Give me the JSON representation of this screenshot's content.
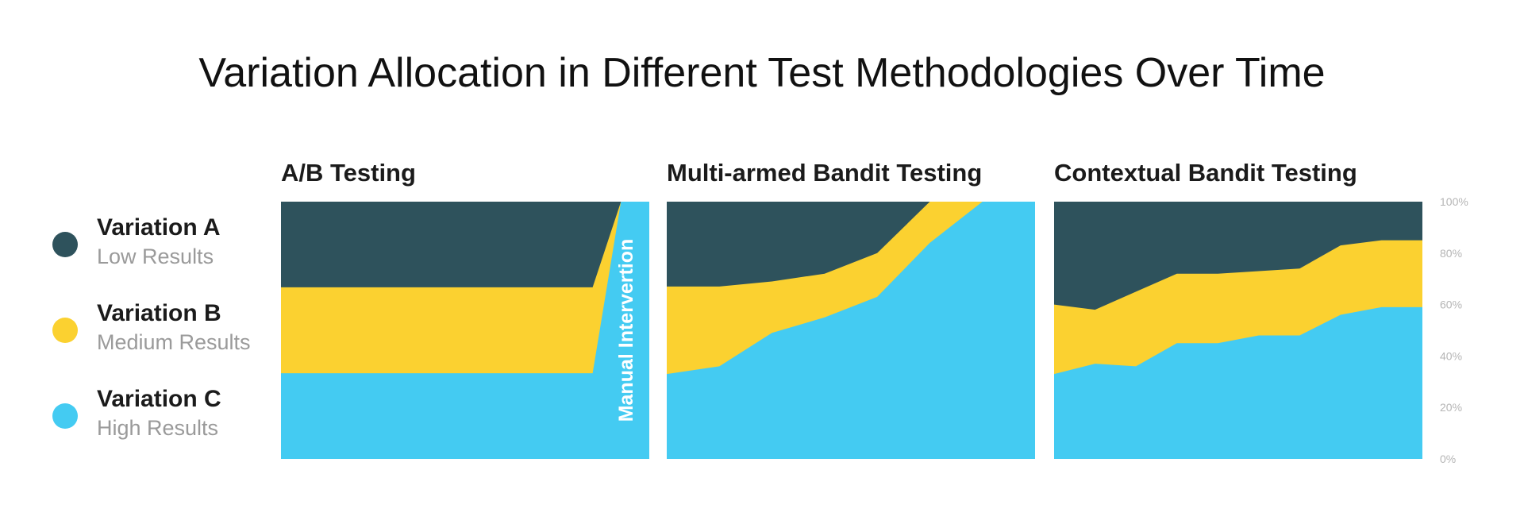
{
  "title": "Variation Allocation in Different Test Methodologies Over Time",
  "legend": [
    {
      "name": "Variation A",
      "sub": "Low Results",
      "color": "#2e525c"
    },
    {
      "name": "Variation B",
      "sub": "Medium Results",
      "color": "#fbd130"
    },
    {
      "name": "Variation C",
      "sub": "High Results",
      "color": "#44cbf2"
    }
  ],
  "annotation": "Manual Intervertion",
  "y_ticks": [
    "0%",
    "20%",
    "40%",
    "60%",
    "80%",
    "100%"
  ],
  "chart_data": [
    {
      "type": "area",
      "title": "A/B Testing",
      "ylim": [
        0,
        100
      ],
      "x": [
        0,
        1,
        2,
        3,
        4,
        5,
        6,
        7,
        8,
        9,
        10,
        11,
        12,
        13
      ],
      "stacked_cumulative": true,
      "series": [
        {
          "name": "Variation C",
          "values": [
            33.3,
            33.3,
            33.3,
            33.3,
            33.3,
            33.3,
            33.3,
            33.3,
            33.3,
            33.3,
            33.3,
            33.3,
            100,
            100
          ]
        },
        {
          "name": "Variation B",
          "values": [
            66.7,
            66.7,
            66.7,
            66.7,
            66.7,
            66.7,
            66.7,
            66.7,
            66.7,
            66.7,
            66.7,
            66.7,
            100,
            100
          ]
        },
        {
          "name": "Variation A",
          "values": [
            100,
            100,
            100,
            100,
            100,
            100,
            100,
            100,
            100,
            100,
            100,
            100,
            100,
            100
          ]
        }
      ]
    },
    {
      "type": "area",
      "title": "Multi-armed Bandit Testing",
      "ylim": [
        0,
        100
      ],
      "x": [
        0,
        1,
        2,
        3,
        4,
        5,
        6,
        7
      ],
      "stacked_cumulative": true,
      "series": [
        {
          "name": "Variation C",
          "values": [
            33,
            36,
            49,
            55,
            63,
            84,
            100,
            100
          ]
        },
        {
          "name": "Variation B",
          "values": [
            67,
            67,
            69,
            72,
            80,
            100,
            100,
            100
          ]
        },
        {
          "name": "Variation A",
          "values": [
            100,
            100,
            100,
            100,
            100,
            100,
            100,
            100
          ]
        }
      ]
    },
    {
      "type": "area",
      "title": "Contextual Bandit Testing",
      "ylim": [
        0,
        100
      ],
      "x": [
        0,
        1,
        2,
        3,
        4,
        5,
        6,
        7,
        8,
        9
      ],
      "stacked_cumulative": true,
      "series": [
        {
          "name": "Variation C",
          "values": [
            33,
            37,
            36,
            45,
            45,
            48,
            48,
            56,
            59,
            59
          ]
        },
        {
          "name": "Variation B",
          "values": [
            60,
            58,
            65,
            72,
            72,
            73,
            74,
            83,
            85,
            85
          ]
        },
        {
          "name": "Variation A",
          "values": [
            100,
            100,
            100,
            100,
            100,
            100,
            100,
            100,
            100,
            100
          ]
        }
      ]
    }
  ]
}
